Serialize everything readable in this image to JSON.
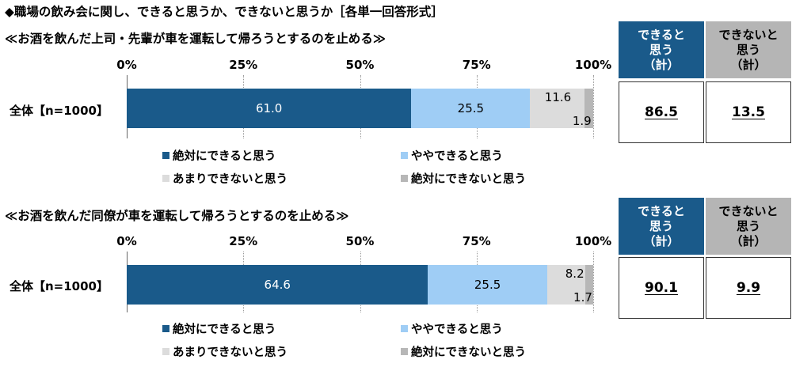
{
  "title": "◆職場の飲み会に関し、できると思うか、できないと思うか［各単一回答形式］",
  "colors": {
    "strongly_can": "#1a5a8a",
    "somewhat_can": "#9fcdf5",
    "somewhat_cannot": "#dcdcdc",
    "cannot_at_all": "#b7b7b7",
    "header_can": "#1a5a8a",
    "header_cannot": "#b5b5b5"
  },
  "legend": [
    "絶対にできると思う",
    "ややできると思う",
    "あまりできないと思う",
    "絶対にできないと思う"
  ],
  "summary_headers": {
    "can": "できると\n思う\n（計）",
    "cannot": "できないと\n思う\n（計）"
  },
  "chart_data": [
    {
      "type": "bar",
      "orientation": "horizontal",
      "stacked": true,
      "title": "≪お酒を飲んだ上司・先輩が車を運転して帰ろうとするのを止める≫",
      "categories": [
        "全体【n=1000】"
      ],
      "x_ticks": [
        "0%",
        "25%",
        "50%",
        "75%",
        "100%"
      ],
      "xlim": [
        0,
        100
      ],
      "series": [
        {
          "name": "絶対にできると思う",
          "values": [
            61.0
          ]
        },
        {
          "name": "ややできると思う",
          "values": [
            25.5
          ]
        },
        {
          "name": "あまりできないと思う",
          "values": [
            11.6
          ]
        },
        {
          "name": "絶対にできないと思う",
          "values": [
            1.9
          ]
        }
      ],
      "labels": [
        "61.0",
        "25.5",
        "11.6",
        "1.9"
      ],
      "summary": {
        "can": "86.5",
        "cannot": "13.5"
      },
      "legend_position": "bottom",
      "grid": true
    },
    {
      "type": "bar",
      "orientation": "horizontal",
      "stacked": true,
      "title": "≪お酒を飲んだ同僚が車を運転して帰ろうとするのを止める≫",
      "categories": [
        "全体【n=1000】"
      ],
      "x_ticks": [
        "0%",
        "25%",
        "50%",
        "75%",
        "100%"
      ],
      "xlim": [
        0,
        100
      ],
      "series": [
        {
          "name": "絶対にできると思う",
          "values": [
            64.6
          ]
        },
        {
          "name": "ややできると思う",
          "values": [
            25.5
          ]
        },
        {
          "name": "あまりできないと思う",
          "values": [
            8.2
          ]
        },
        {
          "name": "絶対にできないと思う",
          "values": [
            1.7
          ]
        }
      ],
      "labels": [
        "64.6",
        "25.5",
        "8.2",
        "1.7"
      ],
      "summary": {
        "can": "90.1",
        "cannot": "9.9"
      },
      "legend_position": "bottom",
      "grid": true
    }
  ]
}
